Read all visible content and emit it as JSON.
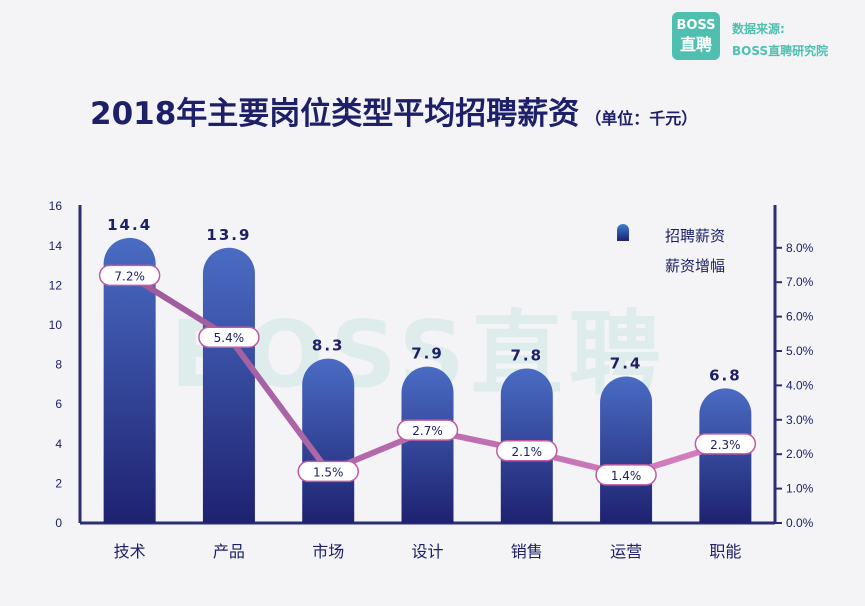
{
  "brand": {
    "logo_line1": "BOSS",
    "logo_line2": "直聘",
    "source_line1": "数据来源:",
    "source_line2": "BOSS直聘研究院"
  },
  "title": "2018年主要岗位类型平均招聘薪资",
  "unit": "（单位：千元）",
  "watermark": "BOSS直聘",
  "colors": {
    "bar_top": "#4a6cc4",
    "bar_bottom": "#1e2270",
    "line": "#9b5a9c",
    "line_end": "#d67fc1",
    "axis": "#2a2e72",
    "brand": "#4fc0b0"
  },
  "chart_data": {
    "type": "bar",
    "categories": [
      "技术",
      "产品",
      "市场",
      "设计",
      "销售",
      "运营",
      "职能"
    ],
    "series": [
      {
        "name": "招聘薪资",
        "type": "bar",
        "values": [
          14.4,
          13.9,
          8.3,
          7.9,
          7.8,
          7.4,
          6.8
        ],
        "labels": [
          "14.4",
          "13.9",
          "8.3",
          "7.9",
          "7.8",
          "7.4",
          "6.8"
        ]
      },
      {
        "name": "薪资增幅",
        "type": "line",
        "values": [
          7.2,
          5.4,
          1.5,
          2.7,
          2.1,
          1.4,
          2.3
        ],
        "labels": [
          "7.2%",
          "5.4%",
          "1.5%",
          "2.7%",
          "2.1%",
          "1.4%",
          "2.3%"
        ]
      }
    ],
    "y_left": {
      "ticks": [
        "0",
        "2",
        "4",
        "6",
        "8",
        "10",
        "12",
        "14",
        "16"
      ],
      "range": [
        0,
        16
      ]
    },
    "y_right": {
      "ticks": [
        "0.0%",
        "1.0%",
        "2.0%",
        "3.0%",
        "4.0%",
        "5.0%",
        "6.0%",
        "7.0%",
        "8.0%"
      ],
      "range": [
        0,
        8
      ]
    },
    "legend": {
      "position": "top-right",
      "items": [
        "招聘薪资",
        "薪资增幅"
      ]
    }
  }
}
